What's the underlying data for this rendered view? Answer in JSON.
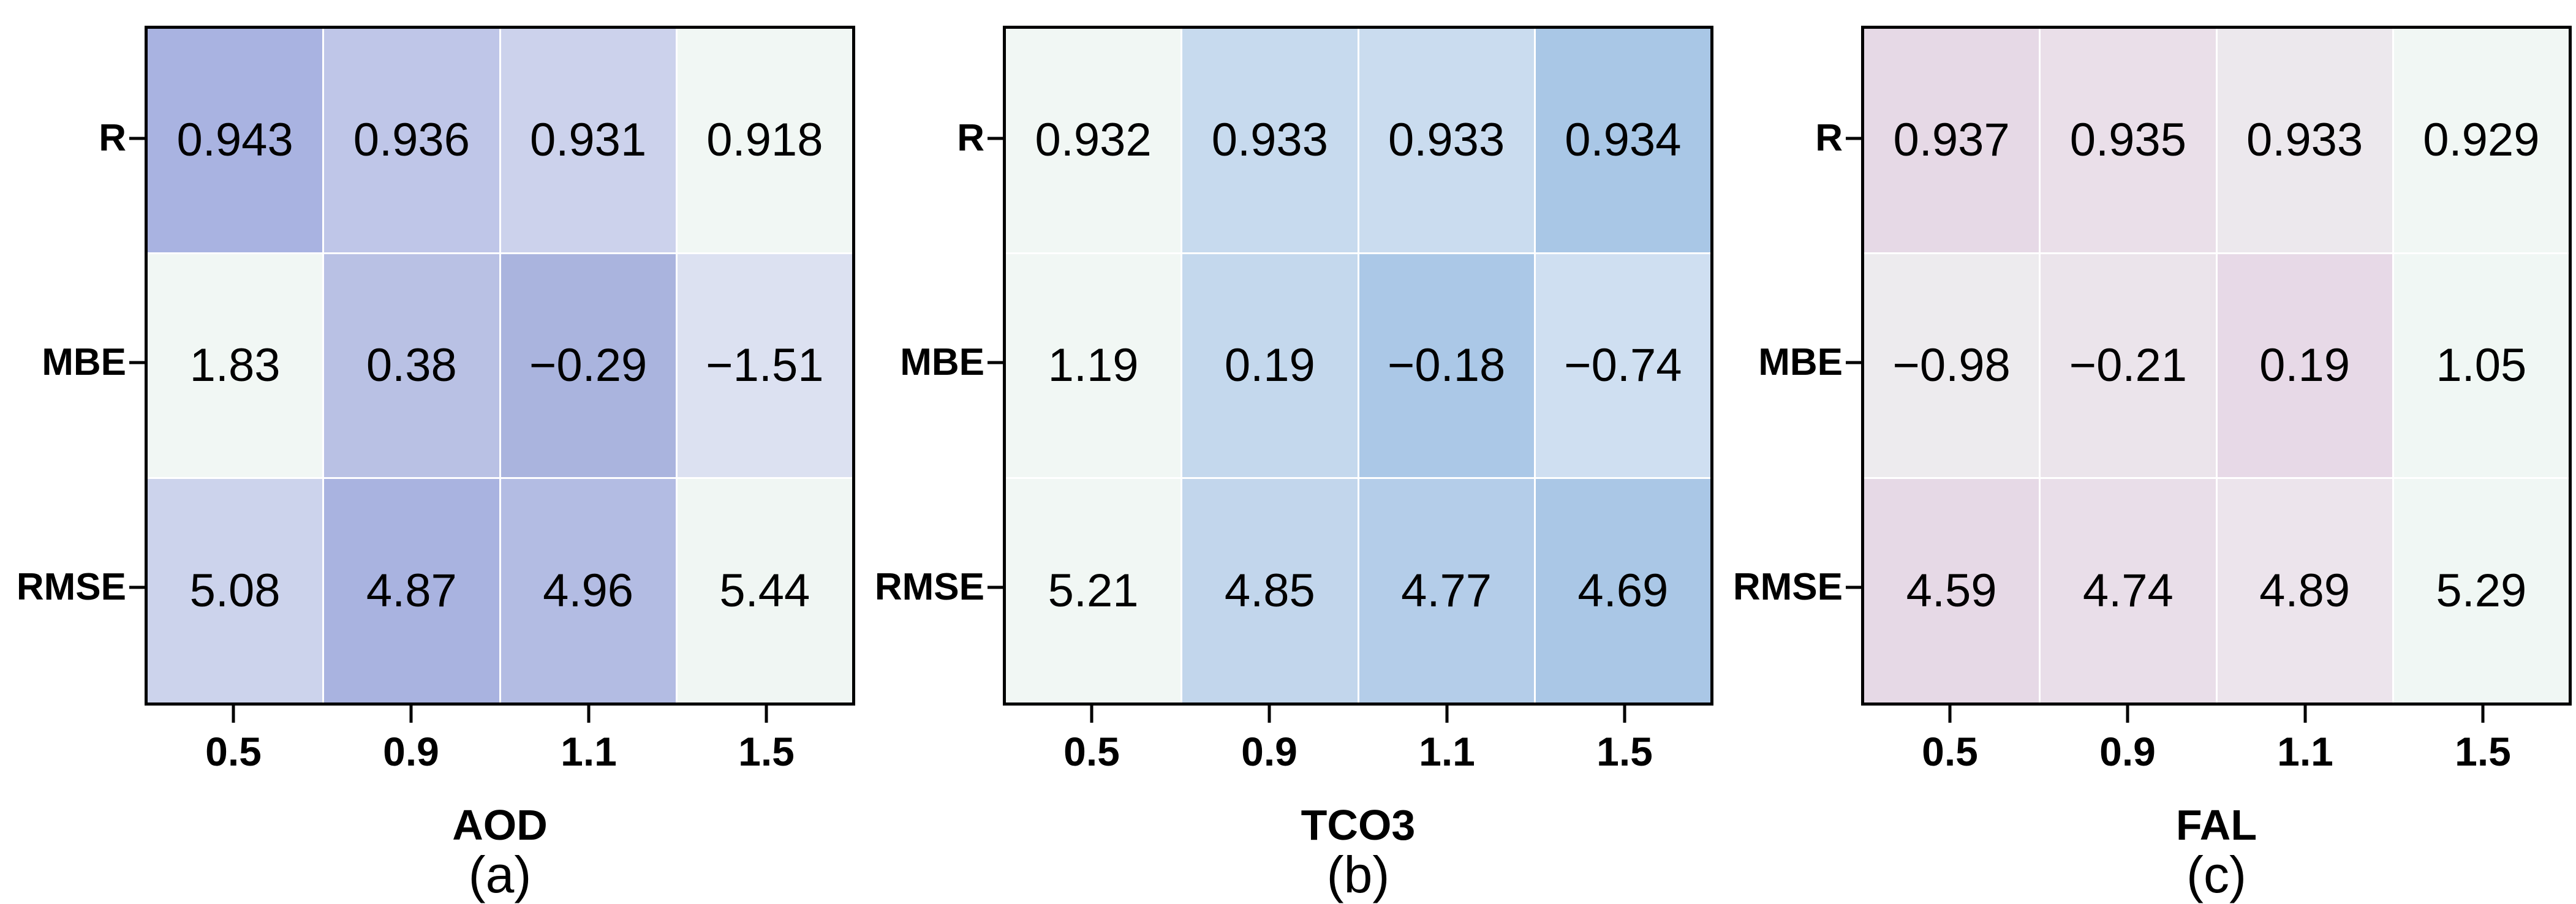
{
  "panels": [
    {
      "id": "a",
      "axis_label": "AOD",
      "caption": "(a)",
      "row_labels": [
        "R",
        "MBE",
        "RMSE"
      ],
      "col_labels": [
        "0.5",
        "0.9",
        "1.1",
        "1.5"
      ],
      "cells": [
        {
          "v": "0.943",
          "bg": "#a9b3e1"
        },
        {
          "v": "0.936",
          "bg": "#bfc6e8"
        },
        {
          "v": "0.931",
          "bg": "#ccd2ec"
        },
        {
          "v": "0.918",
          "bg": "#f1f7f4"
        },
        {
          "v": "1.83",
          "bg": "#f1f7f4"
        },
        {
          "v": "0.38",
          "bg": "#b9c1e4"
        },
        {
          "v": "−0.29",
          "bg": "#aab4de"
        },
        {
          "v": "−1.51",
          "bg": "#dce1f1"
        },
        {
          "v": "5.08",
          "bg": "#ccd3ec"
        },
        {
          "v": "4.87",
          "bg": "#a9b3e0"
        },
        {
          "v": "4.96",
          "bg": "#b3bce3"
        },
        {
          "v": "5.44",
          "bg": "#f0f6f3"
        }
      ]
    },
    {
      "id": "b",
      "axis_label": "TCO3",
      "caption": "(b)",
      "row_labels": [
        "R",
        "MBE",
        "RMSE"
      ],
      "col_labels": [
        "0.5",
        "0.9",
        "1.1",
        "1.5"
      ],
      "cells": [
        {
          "v": "0.932",
          "bg": "#f1f7f4"
        },
        {
          "v": "0.933",
          "bg": "#c7daee"
        },
        {
          "v": "0.933",
          "bg": "#cadcef"
        },
        {
          "v": "0.934",
          "bg": "#a9c7e6"
        },
        {
          "v": "1.19",
          "bg": "#f1f7f4"
        },
        {
          "v": "0.19",
          "bg": "#c4d8ed"
        },
        {
          "v": "−0.18",
          "bg": "#abc8e7"
        },
        {
          "v": "−0.74",
          "bg": "#cfdff1"
        },
        {
          "v": "5.21",
          "bg": "#f1f7f4"
        },
        {
          "v": "4.85",
          "bg": "#c2d6ec"
        },
        {
          "v": "4.77",
          "bg": "#b4cde9"
        },
        {
          "v": "4.69",
          "bg": "#aac7e6"
        }
      ]
    },
    {
      "id": "c",
      "axis_label": "FAL",
      "caption": "(c)",
      "row_labels": [
        "R",
        "MBE",
        "RMSE"
      ],
      "col_labels": [
        "0.5",
        "0.9",
        "1.1",
        "1.5"
      ],
      "cells": [
        {
          "v": "0.937",
          "bg": "#e6d9e6"
        },
        {
          "v": "0.935",
          "bg": "#eadfe9"
        },
        {
          "v": "0.933",
          "bg": "#ece8ed"
        },
        {
          "v": "0.929",
          "bg": "#f1f7f4"
        },
        {
          "v": "−0.98",
          "bg": "#edebee"
        },
        {
          "v": "−0.21",
          "bg": "#ebe4eb"
        },
        {
          "v": "0.19",
          "bg": "#e7d9e7"
        },
        {
          "v": "1.05",
          "bg": "#f0f7f4"
        },
        {
          "v": "4.59",
          "bg": "#e6d9e6"
        },
        {
          "v": "4.74",
          "bg": "#e9dee9"
        },
        {
          "v": "4.89",
          "bg": "#ece4ec"
        },
        {
          "v": "5.29",
          "bg": "#f0f7f4"
        }
      ]
    }
  ],
  "chart_data": [
    {
      "type": "heatmap",
      "title": "(a)",
      "xlabel": "AOD",
      "x_categories": [
        "0.5",
        "0.9",
        "1.1",
        "1.5"
      ],
      "y_categories": [
        "R",
        "MBE",
        "RMSE"
      ],
      "values": [
        [
          0.943,
          0.936,
          0.931,
          0.918
        ],
        [
          1.83,
          0.38,
          -0.29,
          -1.51
        ],
        [
          5.08,
          4.87,
          4.96,
          5.44
        ]
      ],
      "annotations": true,
      "grid": false,
      "legend": "none"
    },
    {
      "type": "heatmap",
      "title": "(b)",
      "xlabel": "TCO3",
      "x_categories": [
        "0.5",
        "0.9",
        "1.1",
        "1.5"
      ],
      "y_categories": [
        "R",
        "MBE",
        "RMSE"
      ],
      "values": [
        [
          0.932,
          0.933,
          0.933,
          0.934
        ],
        [
          1.19,
          0.19,
          -0.18,
          -0.74
        ],
        [
          5.21,
          4.85,
          4.77,
          4.69
        ]
      ],
      "annotations": true,
      "grid": false,
      "legend": "none"
    },
    {
      "type": "heatmap",
      "title": "(c)",
      "xlabel": "FAL",
      "x_categories": [
        "0.5",
        "0.9",
        "1.1",
        "1.5"
      ],
      "y_categories": [
        "R",
        "MBE",
        "RMSE"
      ],
      "values": [
        [
          0.937,
          0.935,
          0.933,
          0.929
        ],
        [
          -0.98,
          -0.21,
          0.19,
          1.05
        ],
        [
          4.59,
          4.74,
          4.89,
          5.29
        ]
      ],
      "annotations": true,
      "grid": false,
      "legend": "none"
    }
  ],
  "colors": {
    "panel_a_accent": "#a9b3e0",
    "panel_b_accent": "#a9c7e6",
    "panel_c_accent": "#e6d9e6",
    "low_end": "#f1f7f4",
    "spine": "#000000"
  }
}
